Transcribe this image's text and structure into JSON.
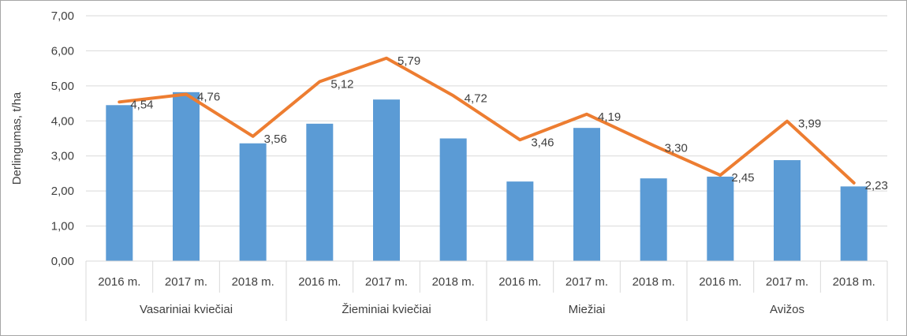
{
  "chart_data": {
    "type": "bar",
    "title": "",
    "ylabel": "Derlingumas, t/ha",
    "xlabel": "",
    "ylim": [
      0,
      7
    ],
    "ytick_step": 1,
    "ytick_labels": [
      "0,00",
      "1,00",
      "2,00",
      "3,00",
      "4,00",
      "5,00",
      "6,00",
      "7,00"
    ],
    "grid": true,
    "legend": "none",
    "categories": [
      "2016 m.",
      "2017 m.",
      "2018 m.",
      "2016 m.",
      "2017 m.",
      "2018 m.",
      "2016 m.",
      "2017 m.",
      "2018 m.",
      "2016 m.",
      "2017 m.",
      "2018 m."
    ],
    "groups": [
      {
        "label": "Vasariniai kviečiai",
        "size": 3
      },
      {
        "label": "Žieminiai kviečiai",
        "size": 3
      },
      {
        "label": "Miežiai",
        "size": 3
      },
      {
        "label": "Avižos",
        "size": 3
      }
    ],
    "series": [
      {
        "type": "bar",
        "color": "#5b9bd5",
        "values": [
          4.45,
          4.82,
          3.36,
          3.92,
          4.61,
          3.5,
          2.27,
          3.8,
          2.36,
          2.41,
          2.88,
          2.13
        ]
      },
      {
        "type": "line",
        "color": "#ed7d31",
        "values": [
          4.54,
          4.76,
          3.56,
          5.12,
          5.79,
          4.72,
          3.46,
          4.19,
          3.3,
          2.45,
          3.99,
          2.23
        ],
        "labels": [
          "4,54",
          "4,76",
          "3,56",
          "5,12",
          "5,79",
          "4,72",
          "3,46",
          "4,19",
          "3,30",
          "2,45",
          "3,99",
          "2,23"
        ]
      }
    ]
  }
}
